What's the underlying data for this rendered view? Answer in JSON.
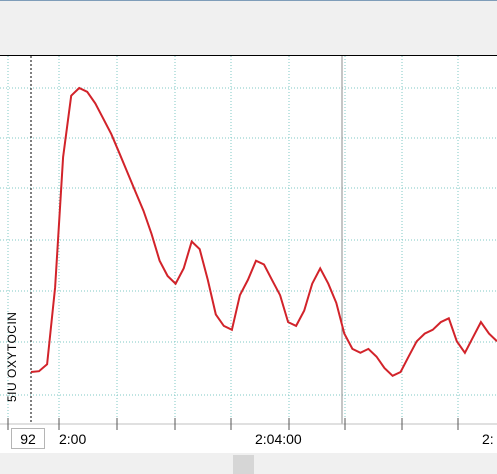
{
  "toolbar": {},
  "value_box": "92",
  "annotation": "5IU OXYTOCIN",
  "time_labels": [
    "2:00",
    "2:04:00",
    "2:"
  ],
  "colors": {
    "trace": "#d2232a",
    "grid": "#7fc9c6",
    "event_line": "#000000",
    "cursor_line": "#8c8c8c"
  },
  "chart_data": {
    "type": "line",
    "title": "",
    "xlabel": "",
    "ylabel": "",
    "x": [
      0,
      1,
      2,
      3,
      4,
      5,
      6,
      7,
      8,
      9,
      10,
      11,
      12,
      13,
      14,
      15,
      16,
      17,
      18,
      19,
      20,
      21,
      22,
      23,
      24,
      25,
      26,
      27,
      28,
      29,
      30,
      31,
      32,
      33,
      34,
      35,
      36,
      37,
      38,
      39,
      40,
      41,
      42,
      43,
      44,
      45,
      46,
      47,
      48,
      49,
      50,
      51,
      52,
      53,
      54,
      55,
      56,
      57,
      58
    ],
    "series": [
      {
        "values": [
          6,
          6.2,
          8,
          28,
          62,
          78,
          80,
          79,
          76,
          72,
          68,
          63,
          58,
          53,
          48,
          42,
          35,
          31,
          29,
          33,
          40,
          38,
          30,
          21,
          18,
          17,
          26,
          30,
          35,
          34,
          30,
          26,
          19,
          18,
          22,
          29,
          33,
          29,
          24,
          16,
          12,
          11,
          12,
          10,
          7,
          5,
          6,
          10,
          14,
          16,
          17,
          19,
          20,
          14,
          11,
          15,
          19,
          16,
          14
        ],
        "style": "continuous trace"
      }
    ],
    "grid": true
  }
}
